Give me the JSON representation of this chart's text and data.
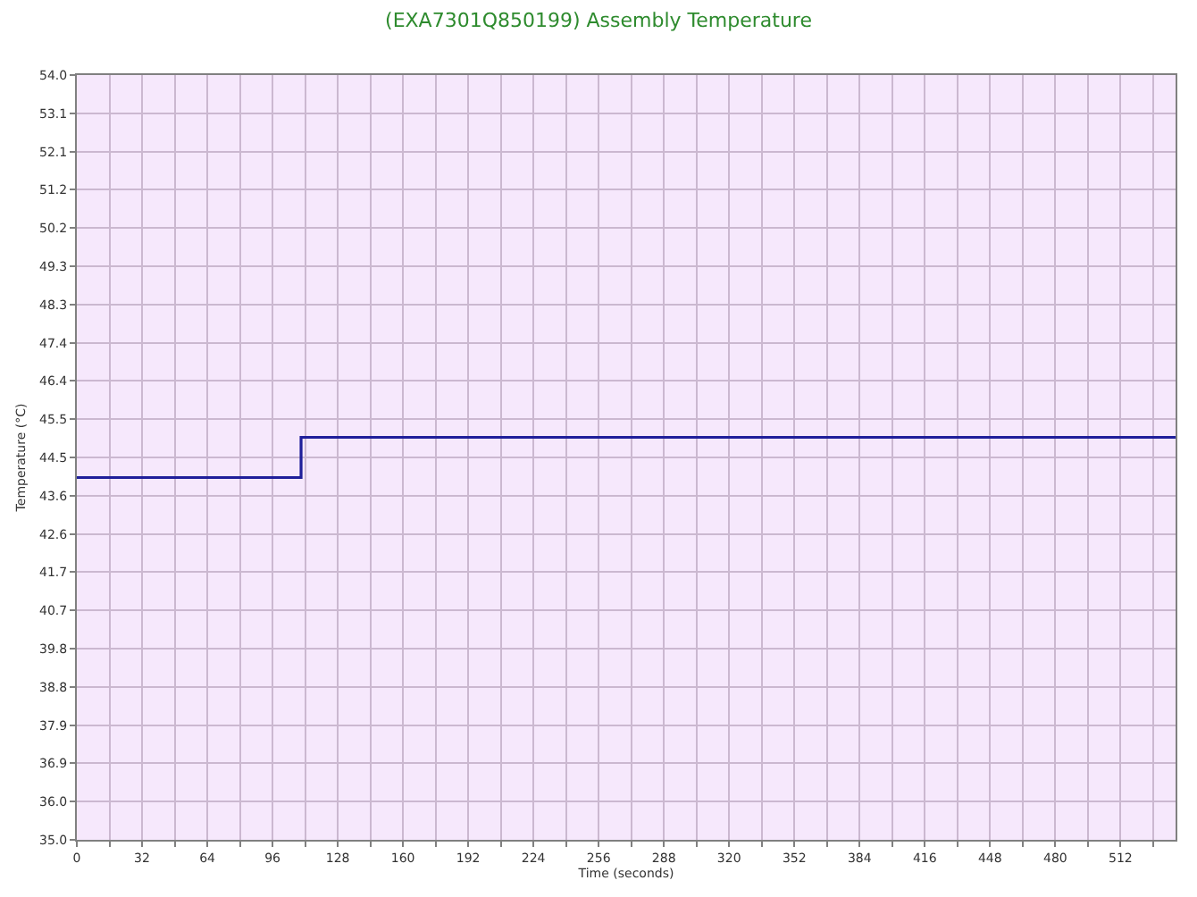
{
  "chart_data": {
    "type": "step",
    "title": "(EXA7301Q850199) Assembly Temperature",
    "xlabel": "Time (seconds)",
    "ylabel": "Temperature (°C)",
    "x": [
      0,
      110,
      539
    ],
    "series": [
      {
        "color": "#1f1f9a",
        "values": [
          44,
          45,
          45
        ]
      }
    ],
    "xlim": [
      0,
      539
    ],
    "ylim": [
      35,
      54
    ],
    "xticks": [
      0,
      {
        "value": 16,
        "label": null
      },
      32,
      {
        "value": 48,
        "label": null
      },
      64,
      {
        "value": 80,
        "label": null
      },
      96,
      {
        "value": 112,
        "label": null
      },
      128,
      {
        "value": 144,
        "label": null
      },
      160,
      {
        "value": 176,
        "label": null
      },
      192,
      {
        "value": 208,
        "label": null
      },
      224,
      {
        "value": 240,
        "label": null
      },
      256,
      {
        "value": 272,
        "label": null
      },
      288,
      {
        "value": 304,
        "label": null
      },
      320,
      {
        "value": 336,
        "label": null
      },
      352,
      {
        "value": 368,
        "label": null
      },
      384,
      {
        "value": 400,
        "label": null
      },
      416,
      {
        "value": 432,
        "label": null
      },
      448,
      {
        "value": 464,
        "label": null
      },
      480,
      {
        "value": 496,
        "label": null
      },
      512,
      {
        "value": 528,
        "label": null
      }
    ],
    "yticks": [
      {
        "value": 35,
        "label": "35.0"
      },
      {
        "value": 35.95,
        "label": "36.0"
      },
      {
        "value": 36.9,
        "label": "36.9"
      },
      {
        "value": 37.85,
        "label": "37.9"
      },
      {
        "value": 38.8,
        "label": "38.8"
      },
      {
        "value": 39.75,
        "label": "39.8"
      },
      {
        "value": 40.7,
        "label": "40.7"
      },
      {
        "value": 41.65,
        "label": "41.7"
      },
      {
        "value": 42.6,
        "label": "42.6"
      },
      {
        "value": 43.55,
        "label": "43.6"
      },
      {
        "value": 44.5,
        "label": "44.5"
      },
      {
        "value": 45.45,
        "label": "45.5"
      },
      {
        "value": 46.4,
        "label": "46.4"
      },
      {
        "value": 47.35,
        "label": "47.4"
      },
      {
        "value": 48.3,
        "label": "48.3"
      },
      {
        "value": 49.25,
        "label": "49.3"
      },
      {
        "value": 50.2,
        "label": "50.2"
      },
      {
        "value": 51.15,
        "label": "51.2"
      },
      {
        "value": 52.1,
        "label": "52.1"
      },
      {
        "value": 53.05,
        "label": "53.1"
      },
      {
        "value": 54,
        "label": "54.0"
      }
    ],
    "grid": true
  }
}
